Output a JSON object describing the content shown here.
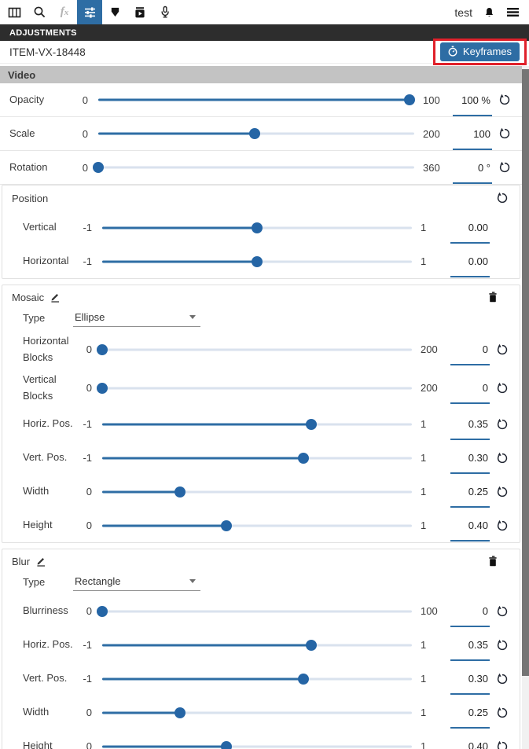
{
  "toolbar": {
    "user_label": "test",
    "active_tool": "adjust-sliders"
  },
  "panel": {
    "title": "ADJUSTMENTS"
  },
  "item": {
    "id": "ITEM-VX-18448",
    "keyframes_button": "Keyframes"
  },
  "colors": {
    "accent": "#2e6da4",
    "annotation_red": "#e0202a",
    "section_header_bg": "#c3c3c3",
    "panel_header_bg": "#2d2d2d",
    "slider_track": "#d9e2ee"
  },
  "sections": {
    "video": {
      "title": "Video",
      "rows": [
        {
          "label": "Opacity",
          "min": "0",
          "max": "100",
          "value": "100 %",
          "pct": 98.5
        },
        {
          "label": "Scale",
          "min": "0",
          "max": "200",
          "value": "100",
          "pct": 49.5
        },
        {
          "label": "Rotation",
          "min": "0",
          "max": "360",
          "value": "0 °",
          "pct": 0
        }
      ]
    },
    "position": {
      "title": "Position",
      "rows": [
        {
          "label": "Vertical",
          "min": "-1",
          "max": "1",
          "value": "0.00",
          "pct": 50
        },
        {
          "label": "Horizontal",
          "min": "-1",
          "max": "1",
          "value": "0.00",
          "pct": 50
        }
      ]
    },
    "mosaic": {
      "title": "Mosaic",
      "type_label": "Type",
      "type_value": "Ellipse",
      "rows": [
        {
          "label": "Horizontal Blocks",
          "min": "0",
          "max": "200",
          "value": "0",
          "pct": 0
        },
        {
          "label": "Vertical Blocks",
          "min": "0",
          "max": "200",
          "value": "0",
          "pct": 0
        },
        {
          "label": "Horiz. Pos.",
          "min": "-1",
          "max": "1",
          "value": "0.35",
          "pct": 67.5
        },
        {
          "label": "Vert. Pos.",
          "min": "-1",
          "max": "1",
          "value": "0.30",
          "pct": 65
        },
        {
          "label": "Width",
          "min": "0",
          "max": "1",
          "value": "0.25",
          "pct": 25
        },
        {
          "label": "Height",
          "min": "0",
          "max": "1",
          "value": "0.40",
          "pct": 40
        }
      ]
    },
    "blur": {
      "title": "Blur",
      "type_label": "Type",
      "type_value": "Rectangle",
      "rows": [
        {
          "label": "Blurriness",
          "min": "0",
          "max": "100",
          "value": "0",
          "pct": 0
        },
        {
          "label": "Horiz. Pos.",
          "min": "-1",
          "max": "1",
          "value": "0.35",
          "pct": 67.5
        },
        {
          "label": "Vert. Pos.",
          "min": "-1",
          "max": "1",
          "value": "0.30",
          "pct": 65
        },
        {
          "label": "Width",
          "min": "0",
          "max": "1",
          "value": "0.25",
          "pct": 25
        },
        {
          "label": "Height",
          "min": "0",
          "max": "1",
          "value": "0.40",
          "pct": 40
        }
      ]
    }
  }
}
